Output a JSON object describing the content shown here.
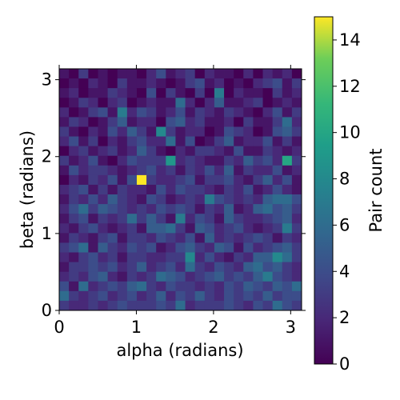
{
  "chart_data": {
    "type": "heatmap",
    "xlabel": "alpha (radians)",
    "ylabel": "beta (radians)",
    "xlim": [
      0,
      3.14159
    ],
    "ylim": [
      0,
      3.14159
    ],
    "xticks": [
      0,
      1,
      2,
      3
    ],
    "yticks": [
      0,
      1,
      2,
      3
    ],
    "colormap": "viridis",
    "colorbar": {
      "label": "Pair count",
      "range": [
        0,
        15
      ],
      "ticks": [
        0,
        2,
        4,
        6,
        8,
        10,
        12,
        14
      ]
    },
    "grid": false,
    "nx": 25,
    "ny": 25,
    "cells_note_rows": "row 0 = top (beta ≈ π), row 24 = bottom (beta ≈ 0); columns left→right alpha 0→π",
    "cells": [
      [
        1,
        0,
        3,
        0,
        1,
        0,
        1,
        1,
        0,
        2,
        4,
        1,
        2,
        3,
        0,
        2,
        1,
        1,
        0,
        2,
        0,
        2,
        1,
        2,
        0
      ],
      [
        0,
        1,
        0,
        2,
        1,
        0,
        3,
        1,
        1,
        2,
        1,
        0,
        1,
        3,
        4,
        1,
        2,
        0,
        1,
        0,
        2,
        3,
        4,
        1,
        3
      ],
      [
        1,
        2,
        0,
        1,
        1,
        3,
        2,
        1,
        0,
        4,
        0,
        3,
        1,
        0,
        3,
        0,
        7,
        0,
        2,
        1,
        1,
        0,
        3,
        1,
        2
      ],
      [
        0,
        1,
        3,
        2,
        0,
        2,
        3,
        0,
        1,
        2,
        1,
        1,
        6,
        2,
        0,
        2,
        5,
        1,
        1,
        2,
        3,
        0,
        1,
        2,
        1
      ],
      [
        2,
        0,
        1,
        3,
        4,
        1,
        7,
        2,
        4,
        3,
        1,
        2,
        4,
        1,
        3,
        2,
        1,
        3,
        2,
        1,
        0,
        2,
        4,
        1,
        3
      ],
      [
        1,
        3,
        2,
        0,
        1,
        3,
        5,
        1,
        2,
        2,
        0,
        4,
        5,
        2,
        3,
        1,
        1,
        2,
        0,
        3,
        1,
        1,
        3,
        6,
        2
      ],
      [
        3,
        1,
        0,
        2,
        1,
        4,
        2,
        5,
        3,
        1,
        8,
        3,
        1,
        2,
        2,
        0,
        1,
        4,
        3,
        2,
        0,
        1,
        4,
        5,
        3
      ],
      [
        2,
        4,
        1,
        3,
        0,
        2,
        1,
        3,
        4,
        2,
        2,
        6,
        1,
        4,
        0,
        1,
        3,
        5,
        1,
        2,
        2,
        4,
        1,
        3,
        1
      ],
      [
        0,
        2,
        3,
        1,
        2,
        3,
        1,
        2,
        5,
        3,
        1,
        0,
        2,
        1,
        3,
        3,
        2,
        1,
        4,
        1,
        1,
        3,
        2,
        1,
        2
      ],
      [
        3,
        1,
        2,
        4,
        1,
        0,
        2,
        4,
        3,
        3,
        3,
        9,
        2,
        3,
        2,
        1,
        1,
        3,
        2,
        5,
        3,
        4,
        2,
        10,
        3
      ],
      [
        1,
        4,
        2,
        3,
        3,
        2,
        1,
        2,
        3,
        4,
        2,
        3,
        1,
        3,
        2,
        4,
        2,
        5,
        1,
        3,
        2,
        2,
        4,
        1,
        2
      ],
      [
        0,
        2,
        1,
        3,
        2,
        4,
        1,
        4,
        15,
        3,
        2,
        2,
        3,
        4,
        1,
        3,
        3,
        4,
        2,
        1,
        3,
        5,
        2,
        4,
        1
      ],
      [
        2,
        3,
        4,
        1,
        3,
        1,
        3,
        2,
        2,
        1,
        4,
        2,
        4,
        3,
        3,
        2,
        1,
        3,
        2,
        4,
        1,
        2,
        4,
        2,
        1
      ],
      [
        1,
        3,
        2,
        4,
        2,
        5,
        3,
        2,
        1,
        4,
        3,
        1,
        2,
        3,
        2,
        7,
        4,
        3,
        2,
        3,
        2,
        5,
        6,
        6,
        4
      ],
      [
        2,
        4,
        6,
        3,
        5,
        4,
        3,
        2,
        3,
        2,
        4,
        3,
        4,
        3,
        1,
        3,
        2,
        5,
        1,
        2,
        5,
        6,
        4,
        5,
        3
      ],
      [
        1,
        3,
        4,
        1,
        3,
        2,
        3,
        6,
        3,
        5,
        3,
        1,
        7,
        2,
        4,
        3,
        1,
        5,
        3,
        2,
        2,
        3,
        4,
        5,
        2
      ],
      [
        2,
        1,
        3,
        4,
        2,
        1,
        2,
        3,
        1,
        5,
        5,
        6,
        3,
        1,
        5,
        4,
        2,
        3,
        4,
        2,
        1,
        2,
        3,
        7,
        3
      ],
      [
        1,
        3,
        2,
        1,
        3,
        4,
        1,
        3,
        3,
        2,
        4,
        3,
        2,
        4,
        1,
        5,
        2,
        3,
        2,
        3,
        4,
        3,
        1,
        3,
        2
      ],
      [
        3,
        4,
        6,
        1,
        5,
        3,
        2,
        4,
        3,
        4,
        1,
        2,
        4,
        5,
        3,
        2,
        5,
        4,
        1,
        4,
        2,
        3,
        4,
        5,
        3
      ],
      [
        2,
        1,
        3,
        4,
        2,
        3,
        1,
        3,
        3,
        2,
        2,
        3,
        3,
        8,
        2,
        4,
        2,
        1,
        3,
        2,
        5,
        5,
        8,
        6,
        3
      ],
      [
        1,
        3,
        3,
        4,
        3,
        4,
        2,
        3,
        5,
        2,
        3,
        4,
        2,
        6,
        3,
        2,
        4,
        3,
        2,
        5,
        6,
        4,
        5,
        3,
        2
      ],
      [
        2,
        3,
        2,
        4,
        5,
        2,
        1,
        3,
        2,
        3,
        6,
        5,
        4,
        2,
        3,
        4,
        5,
        3,
        4,
        3,
        5,
        7,
        4,
        3,
        2
      ],
      [
        4,
        1,
        6,
        2,
        3,
        4,
        3,
        5,
        6,
        3,
        2,
        4,
        3,
        3,
        2,
        3,
        2,
        4,
        3,
        5,
        4,
        3,
        5,
        4,
        6
      ],
      [
        6,
        3,
        2,
        3,
        4,
        2,
        3,
        4,
        2,
        3,
        5,
        2,
        4,
        3,
        5,
        3,
        2,
        4,
        3,
        4,
        3,
        5,
        3,
        4,
        4
      ],
      [
        3,
        2,
        2,
        3,
        2,
        3,
        4,
        3,
        3,
        3,
        4,
        3,
        6,
        2,
        3,
        3,
        3,
        4,
        3,
        2,
        4,
        3,
        6,
        4,
        3
      ]
    ]
  }
}
